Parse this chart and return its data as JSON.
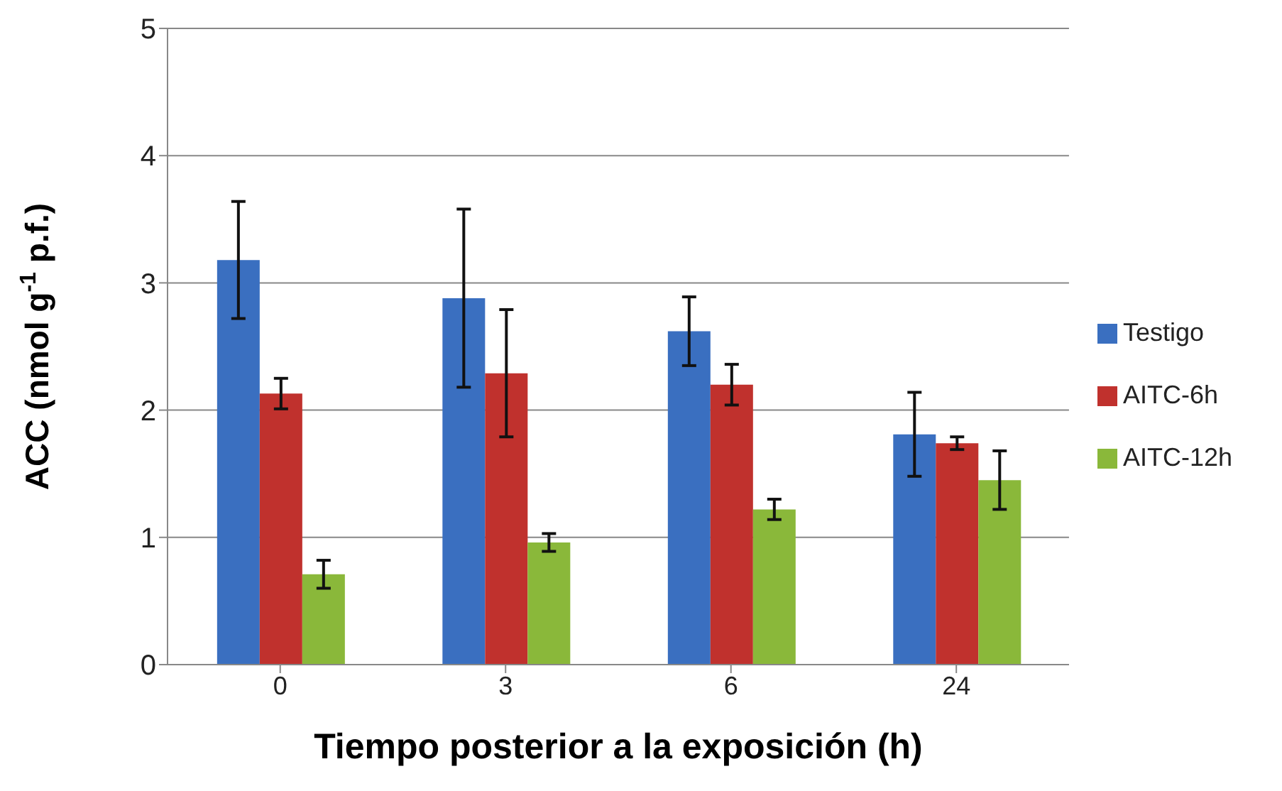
{
  "chart_data": {
    "type": "bar",
    "xlabel": "Tiempo posterior a la exposición  (h)",
    "ylabel": "ACC (nmol g$^{-1}$ p.f.)",
    "categories": [
      "0",
      "3",
      "6",
      "24"
    ],
    "series": [
      {
        "name": "Testigo",
        "color": "#3a6fc0",
        "values": [
          3.18,
          2.88,
          2.62,
          1.81
        ],
        "errors": [
          0.46,
          0.7,
          0.27,
          0.33
        ]
      },
      {
        "name": "AITC-6h",
        "color": "#c0312d",
        "values": [
          2.13,
          2.29,
          2.2,
          1.74
        ],
        "errors": [
          0.12,
          0.5,
          0.16,
          0.05
        ]
      },
      {
        "name": "AITC-12h",
        "color": "#8ab83a",
        "values": [
          0.71,
          0.96,
          1.22,
          1.45
        ],
        "errors": [
          0.11,
          0.07,
          0.08,
          0.23
        ]
      }
    ],
    "ylim": [
      0,
      5
    ],
    "yticks": [
      0,
      1,
      2,
      3,
      4,
      5
    ],
    "grid": "y",
    "legend": "right"
  }
}
